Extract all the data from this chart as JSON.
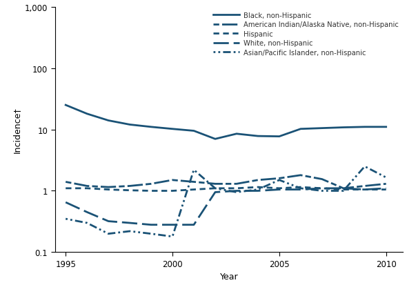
{
  "years": [
    1995,
    1996,
    1997,
    1998,
    1999,
    2000,
    2001,
    2002,
    2003,
    2004,
    2005,
    2006,
    2007,
    2008,
    2009,
    2010
  ],
  "black": [
    25,
    18,
    14,
    12,
    11,
    10.2,
    9.5,
    7.0,
    8.5,
    7.8,
    7.7,
    10.2,
    10.5,
    10.8,
    11.0,
    11.0
  ],
  "amer_indian": [
    1.4,
    1.2,
    1.15,
    1.2,
    1.3,
    1.5,
    1.4,
    1.3,
    1.3,
    1.5,
    1.6,
    1.8,
    1.55,
    1.1,
    1.2,
    1.3
  ],
  "hispanic": [
    1.1,
    1.1,
    1.05,
    1.02,
    1.0,
    1.0,
    1.05,
    1.1,
    1.1,
    1.15,
    1.1,
    1.15,
    1.1,
    1.05,
    1.05,
    1.05
  ],
  "white": [
    0.65,
    0.45,
    0.32,
    0.3,
    0.28,
    0.28,
    0.28,
    0.95,
    1.0,
    1.0,
    1.05,
    1.05,
    1.1,
    1.1,
    1.05,
    1.1
  ],
  "asian_pi": [
    0.35,
    0.3,
    0.2,
    0.22,
    0.2,
    0.18,
    2.2,
    1.1,
    0.95,
    1.05,
    1.5,
    1.1,
    1.0,
    1.0,
    2.5,
    1.65
  ],
  "color": "#1a5276",
  "ylabel": "Incidence†",
  "xlabel": "Year",
  "ylim_bottom": 0.1,
  "ylim_top": 1000,
  "xlim_left": 1994.5,
  "xlim_right": 2010.8
}
